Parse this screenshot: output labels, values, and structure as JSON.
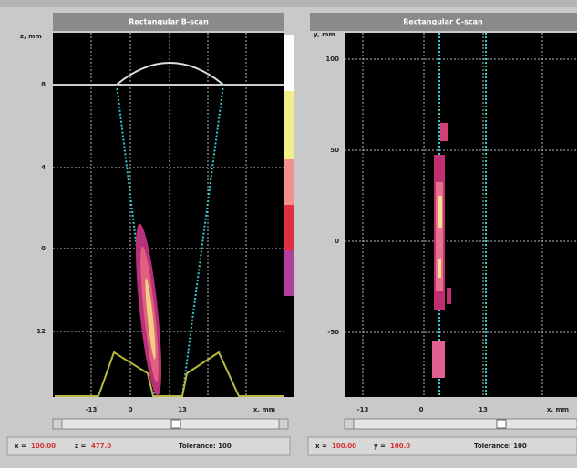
{
  "left_panel": {
    "title": "Rectangular B-scan",
    "y_labels": [
      "z, mm",
      "8",
      "4",
      "0",
      "12"
    ],
    "x_labels": [
      "-13",
      "0",
      "13",
      "x, mm"
    ]
  },
  "right_panel": {
    "title": "Rectangular C-scan",
    "y_labels": [
      "y, mm",
      "100",
      "50",
      "0",
      "-50"
    ],
    "x_labels": [
      "-13",
      "0",
      "13",
      "x, mm"
    ]
  },
  "status_left": {
    "x_label": "x =",
    "x_value": "100.00",
    "z_label": "z =",
    "z_value": "477.0",
    "tolerance": "Tolerance: 100"
  },
  "status_right": {
    "x_label": "x =",
    "x_value": "100.00",
    "y_label": "y =",
    "y_value": "100.0",
    "tolerance": "Tolerance: 100"
  }
}
